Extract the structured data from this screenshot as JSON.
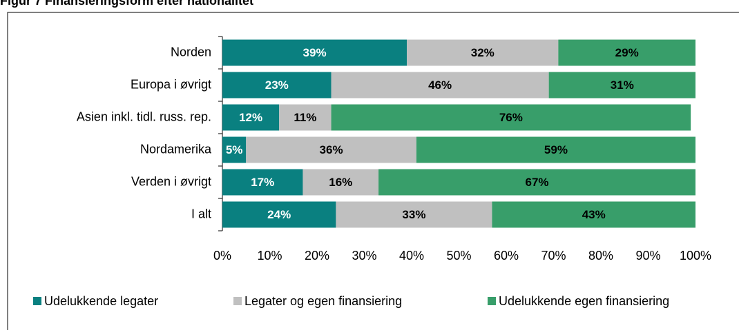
{
  "chart_data": {
    "type": "stacked_barh",
    "title": "Figur 7 Finansieringsform efter nationalitet",
    "categories": [
      "Norden",
      "Europa i øvrigt",
      "Asien inkl. tidl. russ. rep.",
      "Nordamerika",
      "Verden i øvrigt",
      "I alt"
    ],
    "series": [
      {
        "name": "Udelukkende legater",
        "color": "#0a8080",
        "label_color": "#ffffff",
        "values": [
          39,
          23,
          12,
          5,
          17,
          24
        ],
        "value_labels": [
          "39%",
          "23%",
          "12%",
          "5%",
          "17%",
          "24%"
        ]
      },
      {
        "name": "Legater og egen finansiering",
        "color": "#c0c0c0",
        "label_color": "#000000",
        "values": [
          32,
          46,
          11,
          36,
          16,
          33
        ],
        "value_labels": [
          "32%",
          "46%",
          "11%",
          "36%",
          "16%",
          "33%"
        ]
      },
      {
        "name": "Udelukkende egen finansiering",
        "color": "#389e6a",
        "label_color": "#000000",
        "values": [
          29,
          31,
          76,
          59,
          67,
          43
        ],
        "value_labels": [
          "29%",
          "31%",
          "76%",
          "59%",
          "67%",
          "43%"
        ]
      }
    ],
    "xlim": [
      0,
      100
    ],
    "xticks": [
      {
        "value": 0,
        "label": "0%"
      },
      {
        "value": 10,
        "label": "10%"
      },
      {
        "value": 20,
        "label": "20%"
      },
      {
        "value": 30,
        "label": "30%"
      },
      {
        "value": 40,
        "label": "40%"
      },
      {
        "value": 50,
        "label": "50%"
      },
      {
        "value": 60,
        "label": "60%"
      },
      {
        "value": 70,
        "label": "70%"
      },
      {
        "value": 80,
        "label": "80%"
      },
      {
        "value": 90,
        "label": "90%"
      },
      {
        "value": 100,
        "label": "100%"
      }
    ],
    "legend": "bottom"
  }
}
